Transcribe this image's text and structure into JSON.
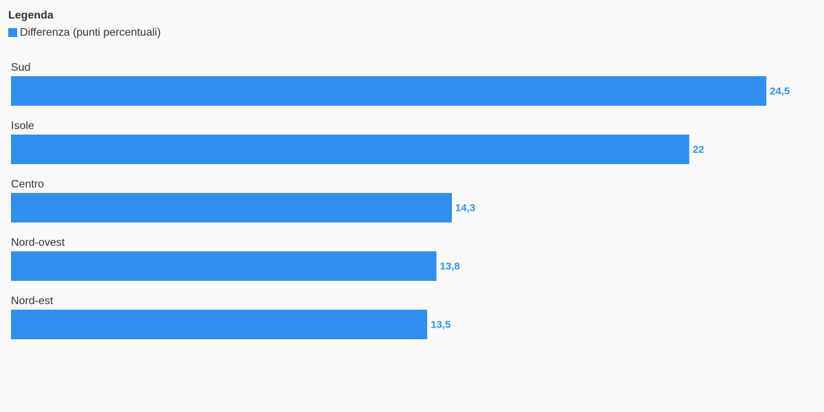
{
  "chart_data": {
    "type": "bar",
    "orientation": "horizontal",
    "legend_title": "Legenda",
    "categories": [
      "Sud",
      "Isole",
      "Centro",
      "Nord-ovest",
      "Nord-est"
    ],
    "series": [
      {
        "name": "Differenza (punti percentuali)",
        "color": "#318ef0",
        "values": [
          24.5,
          22,
          14.3,
          13.8,
          13.5
        ],
        "value_labels": [
          "24,5",
          "22",
          "14,3",
          "13,8",
          "13,5"
        ]
      }
    ]
  }
}
